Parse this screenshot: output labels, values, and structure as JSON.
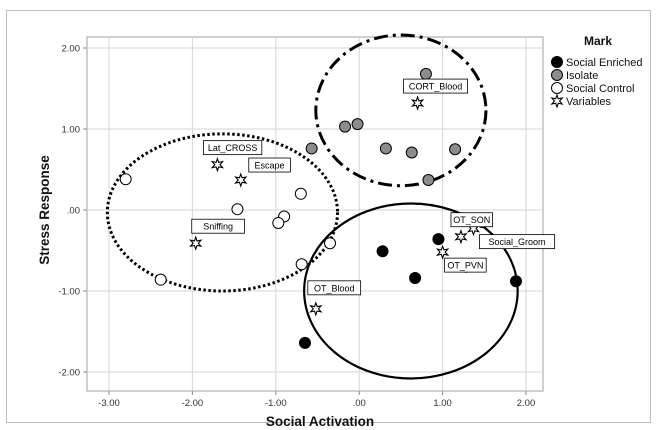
{
  "chart_data": {
    "type": "scatter",
    "xlabel": "Social Activation",
    "ylabel": "Stress Response",
    "xlim": [
      -3.3,
      2.35
    ],
    "ylim": [
      -2.2,
      2.2
    ],
    "xticks": [
      -3,
      -2,
      -1,
      0,
      1,
      2
    ],
    "xtick_labels": [
      "-3.00",
      "-2.00",
      "-1.00",
      ".00",
      "1.00",
      "2.00"
    ],
    "yticks": [
      2,
      1,
      0,
      -1,
      -2
    ],
    "ytick_labels": [
      "2.00",
      "1.00",
      ".00",
      "-1.00",
      "-2.00"
    ],
    "grid": true,
    "legend_title": "Mark",
    "legend_position": "right",
    "series": [
      {
        "name": "Social Enriched",
        "marker": "filled-circle",
        "fill": "#000000",
        "points": [
          {
            "x": 1.48,
            "y": -0.15
          },
          {
            "x": 0.95,
            "y": -0.36
          },
          {
            "x": 0.28,
            "y": -0.51
          },
          {
            "x": 1.28,
            "y": -0.7
          },
          {
            "x": 0.67,
            "y": -0.84
          },
          {
            "x": 1.88,
            "y": -0.88
          },
          {
            "x": -0.65,
            "y": -1.64
          }
        ]
      },
      {
        "name": "Isolate",
        "marker": "gray-circle",
        "fill": "#8c8c8c",
        "points": [
          {
            "x": 0.8,
            "y": 1.68
          },
          {
            "x": -0.17,
            "y": 1.03
          },
          {
            "x": -0.02,
            "y": 1.06
          },
          {
            "x": 0.32,
            "y": 0.76
          },
          {
            "x": -0.57,
            "y": 0.76
          },
          {
            "x": 0.63,
            "y": 0.71
          },
          {
            "x": 1.15,
            "y": 0.75
          },
          {
            "x": 0.83,
            "y": 0.37
          }
        ]
      },
      {
        "name": "Social Control",
        "marker": "open-circle",
        "fill": "#ffffff",
        "points": [
          {
            "x": -2.8,
            "y": 0.38
          },
          {
            "x": -0.7,
            "y": 0.2
          },
          {
            "x": -1.46,
            "y": 0.01
          },
          {
            "x": -0.9,
            "y": -0.08
          },
          {
            "x": -0.97,
            "y": -0.16
          },
          {
            "x": -0.35,
            "y": -0.41
          },
          {
            "x": -0.69,
            "y": -0.67
          },
          {
            "x": -2.38,
            "y": -0.86
          }
        ]
      },
      {
        "name": "Variables",
        "marker": "star",
        "fill": "#ffffff",
        "points": [
          {
            "x": 0.7,
            "y": 1.32,
            "label": "CORT_Blood"
          },
          {
            "x": -1.7,
            "y": 0.56,
            "label": "Lat_CROSS"
          },
          {
            "x": -1.42,
            "y": 0.37,
            "label": "Escape"
          },
          {
            "x": -1.96,
            "y": -0.41,
            "label": "Sniffing"
          },
          {
            "x": 1.22,
            "y": -0.33,
            "label": "OT_SON"
          },
          {
            "x": 1.37,
            "y": -0.23,
            "label": "Social_Groom"
          },
          {
            "x": 1.0,
            "y": -0.52,
            "label": "OT_PVN"
          },
          {
            "x": -0.52,
            "y": -1.22,
            "label": "OT_Blood"
          }
        ]
      }
    ],
    "ellipses": [
      {
        "group": "Isolate",
        "style": "dash-dot",
        "cx": 0.5,
        "cy": 1.23,
        "rx": 1.02,
        "ry": 0.93
      },
      {
        "group": "Social Control",
        "style": "dotted",
        "cx": -1.64,
        "cy": -0.03,
        "rx": 1.38,
        "ry": 0.97
      },
      {
        "group": "Social Enriched",
        "style": "solid",
        "cx": 0.62,
        "cy": -1.0,
        "rx": 1.28,
        "ry": 1.08
      }
    ]
  }
}
